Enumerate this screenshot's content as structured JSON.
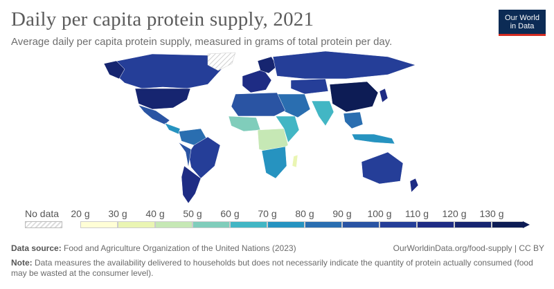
{
  "header": {
    "title": "Daily per capita protein supply, 2021",
    "subtitle": "Average daily per capita protein supply, measured in grams of total protein per day.",
    "logo_line1": "Our World",
    "logo_line2": "in Data"
  },
  "legend": {
    "no_data_label": "No data",
    "bins": [
      {
        "label": "20 g",
        "color": "#fffed6"
      },
      {
        "label": "30 g",
        "color": "#eaf5b3"
      },
      {
        "label": "40 g",
        "color": "#c6e8b5"
      },
      {
        "label": "50 g",
        "color": "#80cdbb"
      },
      {
        "label": "60 g",
        "color": "#42b6c4"
      },
      {
        "label": "70 g",
        "color": "#2693c0"
      },
      {
        "label": "80 g",
        "color": "#2a6eb0"
      },
      {
        "label": "90 g",
        "color": "#2a54a3"
      },
      {
        "label": "100 g",
        "color": "#253e98"
      },
      {
        "label": "110 g",
        "color": "#1e2c84"
      },
      {
        "label": "120 g",
        "color": "#162570"
      },
      {
        "label": "130 g",
        "color": "#0d1c55"
      }
    ]
  },
  "footer": {
    "source_label": "Data source:",
    "source_text": "Food and Agriculture Organization of the United Nations (2023)",
    "credit": "OurWorldinData.org/food-supply | CC BY",
    "note_label": "Note:",
    "note_text": "Data measures the availability delivered to households but does not necessarily indicate the quantity of protein actually consumed (food may be wasted at the consumer level)."
  }
}
